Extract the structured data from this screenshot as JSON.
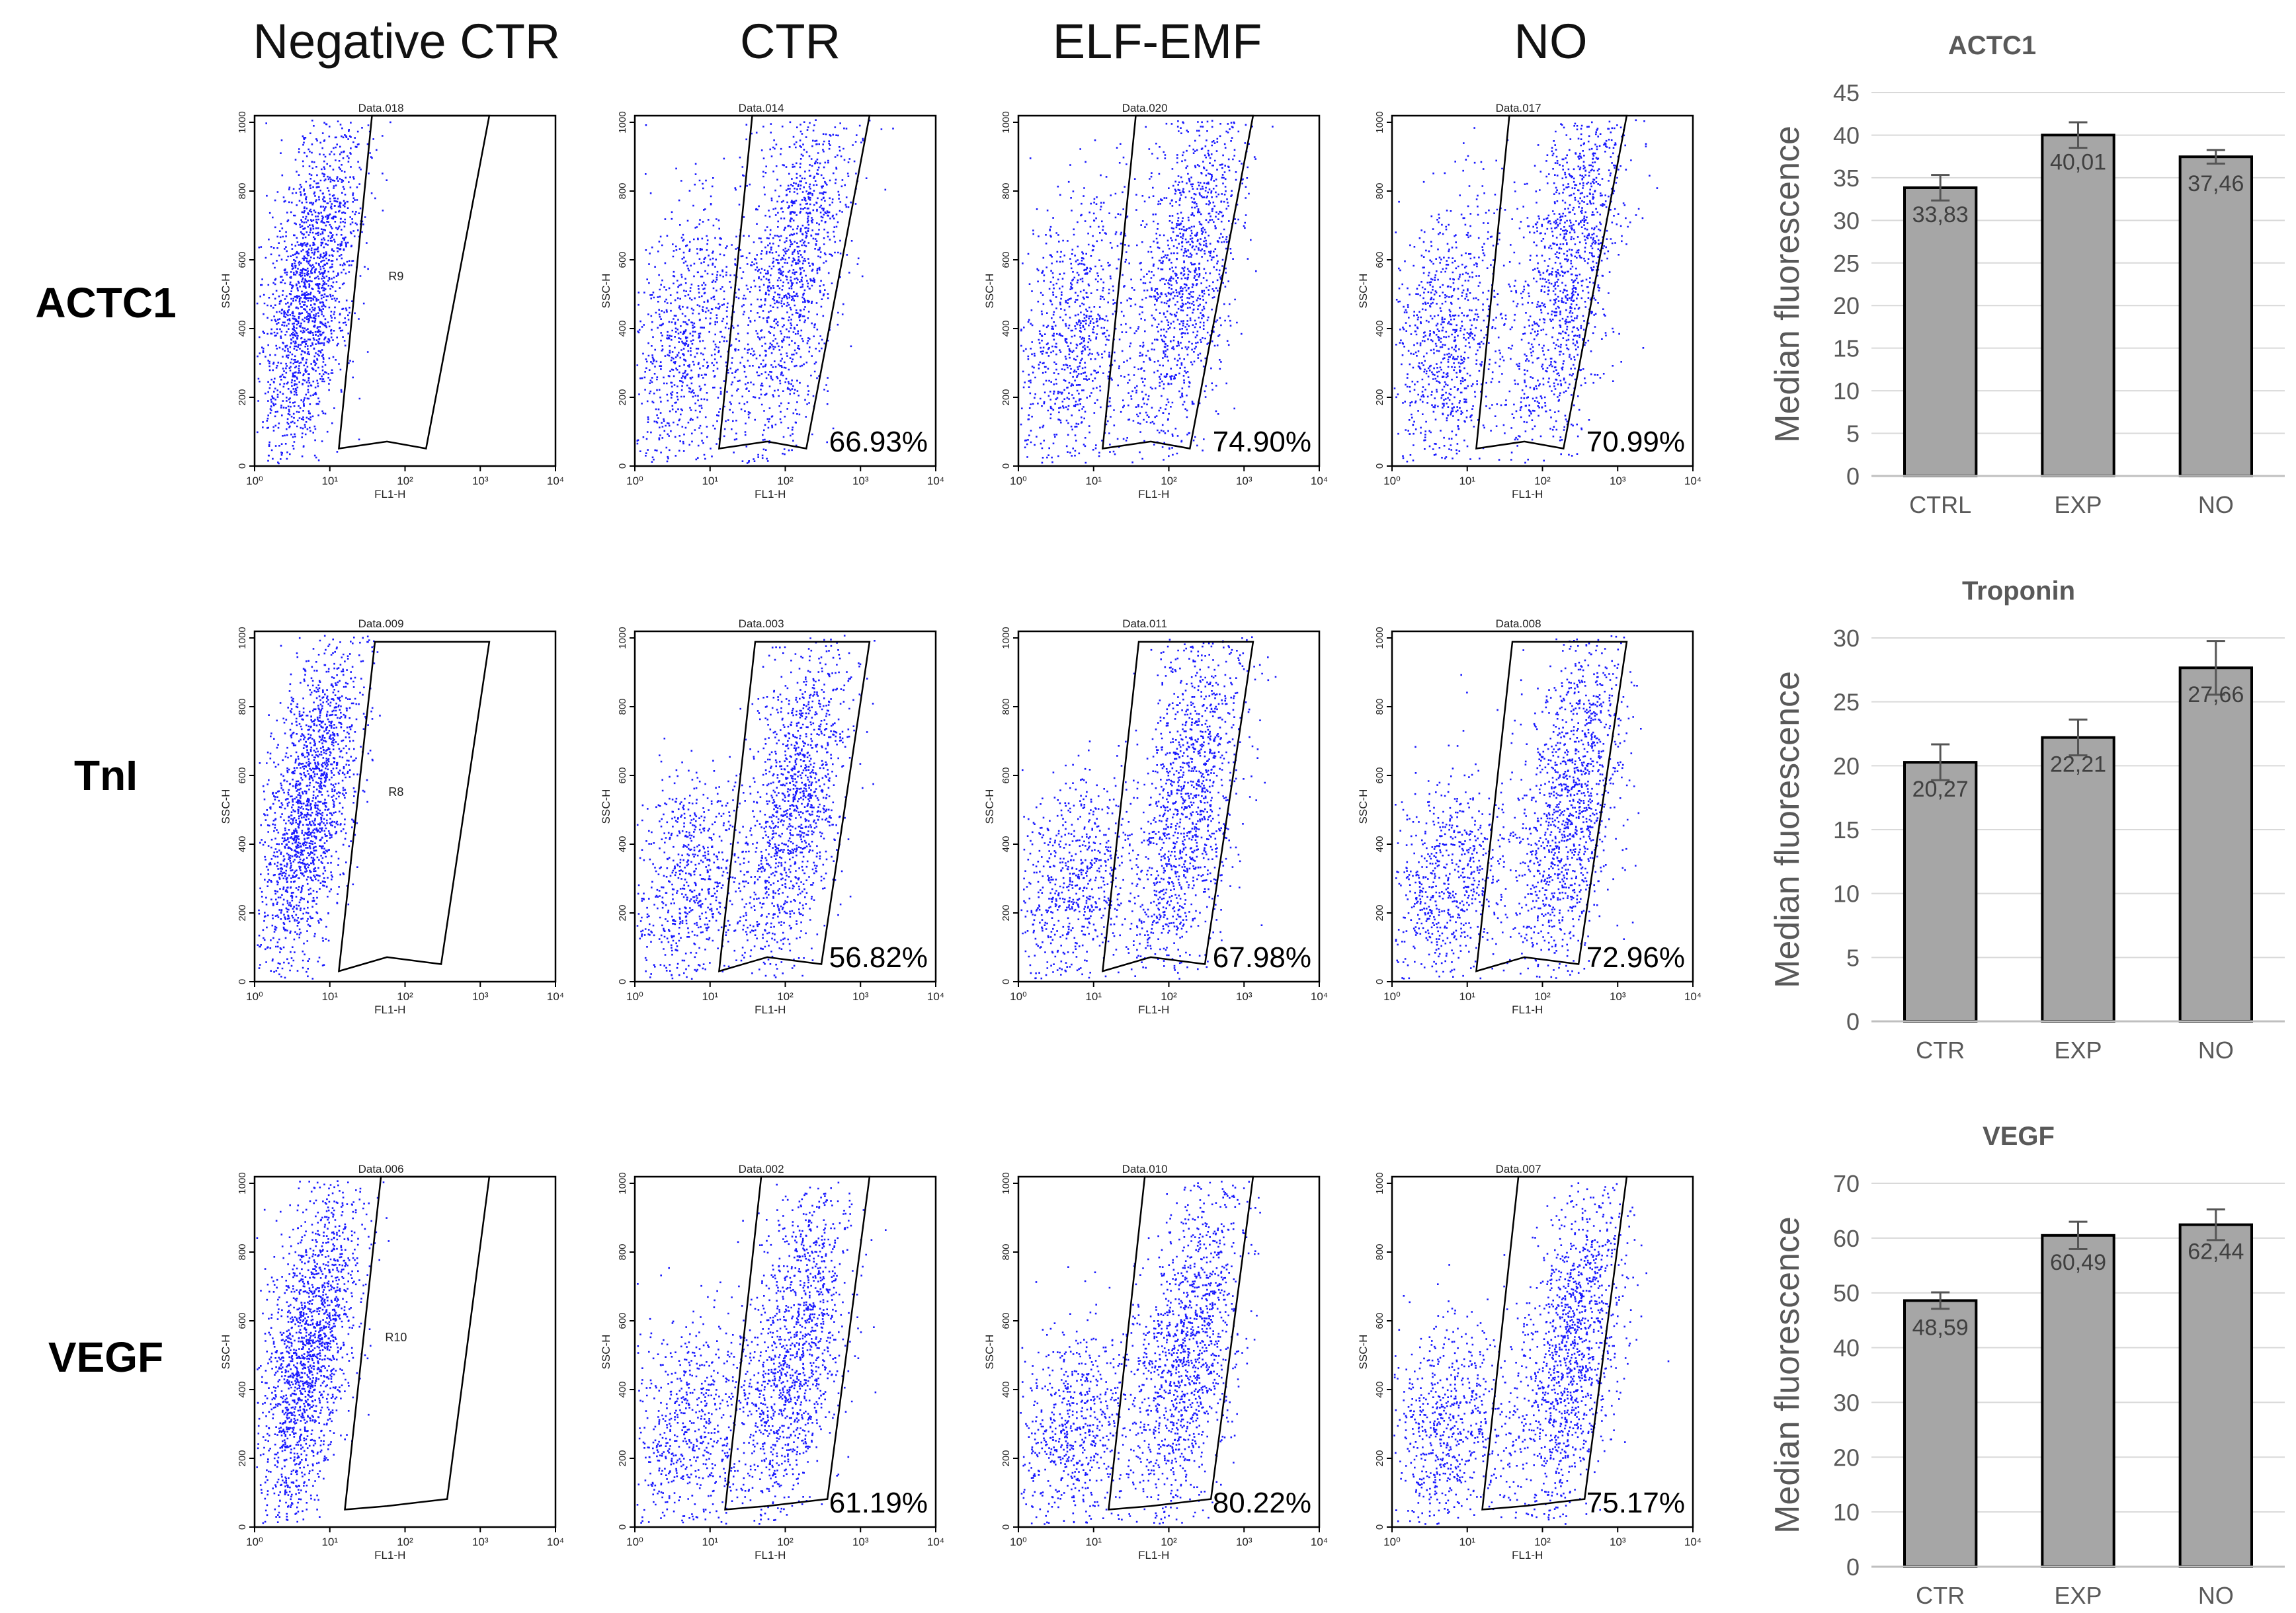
{
  "column_headers": [
    "Negative CTR",
    "CTR",
    "ELF-EMF",
    "NO"
  ],
  "row_labels": [
    "ACTC1",
    "TnI",
    "VEGF"
  ],
  "colors": {
    "dots": "#1a1aff",
    "bar_fill": "#a6a6a6",
    "bar_stroke": "#000000",
    "grid": "#d9d9d9",
    "axis_text": "#595959",
    "title_text": "#595959"
  },
  "flow_axes": {
    "xlabel": "FL1-H",
    "ylabel": "SSC-H",
    "x_ticks": [
      "10⁰",
      "10¹",
      "10²",
      "10³",
      "10⁴"
    ],
    "y_ticks": [
      "0",
      "200",
      "400",
      "600",
      "800",
      "1000"
    ]
  },
  "flow_panels": [
    [
      {
        "data_label": "Data.018",
        "region": "R9",
        "percent": ""
      },
      {
        "data_label": "Data.014",
        "region": "",
        "percent": "66.93%"
      },
      {
        "data_label": "Data.020",
        "region": "",
        "percent": "74.90%"
      },
      {
        "data_label": "Data.017",
        "region": "",
        "percent": "70.99%"
      }
    ],
    [
      {
        "data_label": "Data.009",
        "region": "R8",
        "percent": ""
      },
      {
        "data_label": "Data.003",
        "region": "",
        "percent": "56.82%"
      },
      {
        "data_label": "Data.011",
        "region": "",
        "percent": "67.98%"
      },
      {
        "data_label": "Data.008",
        "region": "",
        "percent": "72.96%"
      }
    ],
    [
      {
        "data_label": "Data.006",
        "region": "R10",
        "percent": ""
      },
      {
        "data_label": "Data.002",
        "region": "",
        "percent": "61.19%"
      },
      {
        "data_label": "Data.010",
        "region": "",
        "percent": "80.22%"
      },
      {
        "data_label": "Data.007",
        "region": "",
        "percent": "75.17%"
      }
    ]
  ],
  "chart_data": [
    {
      "type": "bar",
      "title": "ACTC1",
      "categories": [
        "CTRL",
        "EXP",
        "NO"
      ],
      "values": [
        33.83,
        40.01,
        37.46
      ],
      "value_labels": [
        "33,83",
        "40,01",
        "37,46"
      ],
      "errors": [
        1.5,
        1.5,
        0.8
      ],
      "ylabel": "Median fluorescence",
      "ylim": [
        0,
        45
      ],
      "yticks": [
        0,
        5,
        10,
        15,
        20,
        25,
        30,
        35,
        40,
        45
      ],
      "grid": true
    },
    {
      "type": "bar",
      "title": "Troponin",
      "categories": [
        "CTR",
        "EXP",
        "NO"
      ],
      "values": [
        20.27,
        22.21,
        27.66
      ],
      "value_labels": [
        "20,27",
        "22,21",
        "27,66"
      ],
      "errors": [
        1.4,
        1.4,
        2.1
      ],
      "ylabel": "Median fluorescence",
      "ylim": [
        0,
        30
      ],
      "yticks": [
        0,
        5,
        10,
        15,
        20,
        25,
        30
      ],
      "grid": true
    },
    {
      "type": "bar",
      "title": "VEGF",
      "categories": [
        "CTR",
        "EXP",
        "NO"
      ],
      "values": [
        48.59,
        60.49,
        62.44
      ],
      "value_labels": [
        "48,59",
        "60,49",
        "62,44"
      ],
      "errors": [
        1.5,
        2.5,
        2.8
      ],
      "ylabel": "Median fluorescence",
      "ylim": [
        0,
        70
      ],
      "yticks": [
        0,
        10,
        20,
        30,
        40,
        50,
        60,
        70
      ],
      "grid": true
    }
  ]
}
